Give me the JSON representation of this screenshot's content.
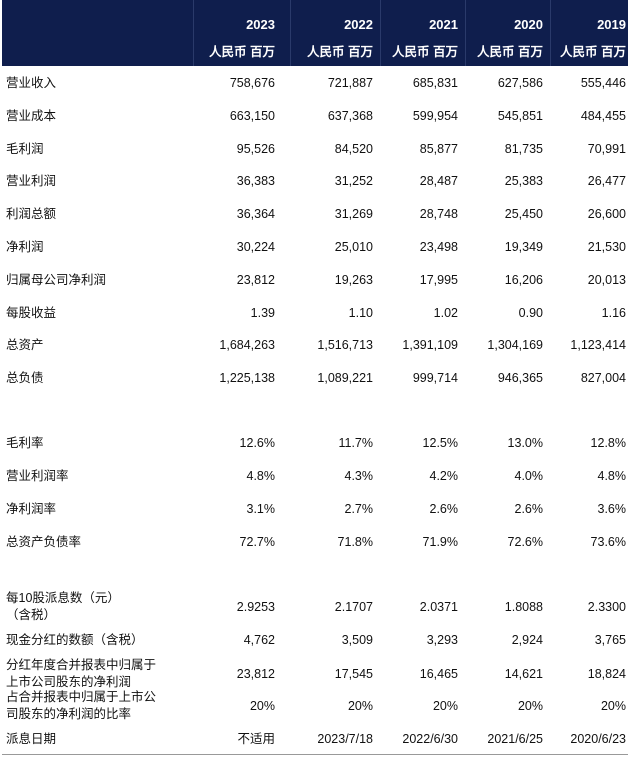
{
  "header": {
    "years": [
      "2023",
      "2022",
      "2021",
      "2020",
      "2019"
    ],
    "units": [
      "人民币 百万",
      "人民币 百万",
      "人民币 百万",
      "人民币 百万",
      "人民币 百万"
    ]
  },
  "table": {
    "rows": [
      {
        "label": [
          "营业收入"
        ],
        "values": [
          "758,676",
          "721,887",
          "685,831",
          "627,586",
          "555,446"
        ]
      },
      {
        "label": [
          "营业成本"
        ],
        "values": [
          "663,150",
          "637,368",
          "599,954",
          "545,851",
          "484,455"
        ]
      },
      {
        "label": [
          "毛利润"
        ],
        "values": [
          "95,526",
          "84,520",
          "85,877",
          "81,735",
          "70,991"
        ]
      },
      {
        "label": [
          "营业利润"
        ],
        "values": [
          "36,383",
          "31,252",
          "28,487",
          "25,383",
          "26,477"
        ]
      },
      {
        "label": [
          "利润总额"
        ],
        "values": [
          "36,364",
          "31,269",
          "28,748",
          "25,450",
          "26,600"
        ]
      },
      {
        "label": [
          "净利润"
        ],
        "values": [
          "30,224",
          "25,010",
          "23,498",
          "19,349",
          "21,530"
        ]
      },
      {
        "label": [
          "归属母公司净利润"
        ],
        "values": [
          "23,812",
          "19,263",
          "17,995",
          "16,206",
          "20,013"
        ]
      },
      {
        "label": [
          "每股收益"
        ],
        "values": [
          "1.39",
          "1.10",
          "1.02",
          "0.90",
          "1.16"
        ]
      },
      {
        "label": [
          "总资产"
        ],
        "values": [
          "1,684,263",
          "1,516,713",
          "1,391,109",
          "1,304,169",
          "1,123,414"
        ]
      },
      {
        "label": [
          "总负债"
        ],
        "values": [
          "1,225,138",
          "1,089,221",
          "999,714",
          "946,365",
          "827,004"
        ]
      },
      {
        "label": [
          "毛利率"
        ],
        "values": [
          "12.6%",
          "11.7%",
          "12.5%",
          "13.0%",
          "12.8%"
        ]
      },
      {
        "label": [
          "营业利润率"
        ],
        "values": [
          "4.8%",
          "4.3%",
          "4.2%",
          "4.0%",
          "4.8%"
        ]
      },
      {
        "label": [
          "净利润率"
        ],
        "values": [
          "3.1%",
          "2.7%",
          "2.6%",
          "2.6%",
          "3.6%"
        ]
      },
      {
        "label": [
          "总资产负债率"
        ],
        "values": [
          "72.7%",
          "71.8%",
          "71.9%",
          "72.6%",
          "73.6%"
        ]
      },
      {
        "label": [
          "每10股派息数（元）",
          "（含税）"
        ],
        "values": [
          "2.9253",
          "2.1707",
          "2.0371",
          "1.8088",
          "2.3300"
        ]
      },
      {
        "label": [
          "现金分红的数额（含税）"
        ],
        "values": [
          "4,762",
          "3,509",
          "3,293",
          "2,924",
          "3,765"
        ]
      },
      {
        "label": [
          "分红年度合并报表中归属于",
          "上市公司股东的净利润"
        ],
        "values": [
          "23,812",
          "17,545",
          "16,465",
          "14,621",
          "18,824"
        ]
      },
      {
        "label": [
          "占合并报表中归属于上市公",
          "司股东的净利润的比率"
        ],
        "values": [
          "20%",
          "20%",
          "20%",
          "20%",
          "20%"
        ]
      },
      {
        "label": [
          "派息日期"
        ],
        "values": [
          "不适用",
          "2023/7/18",
          "2022/6/30",
          "2021/6/25",
          "2020/6/23"
        ]
      }
    ]
  }
}
